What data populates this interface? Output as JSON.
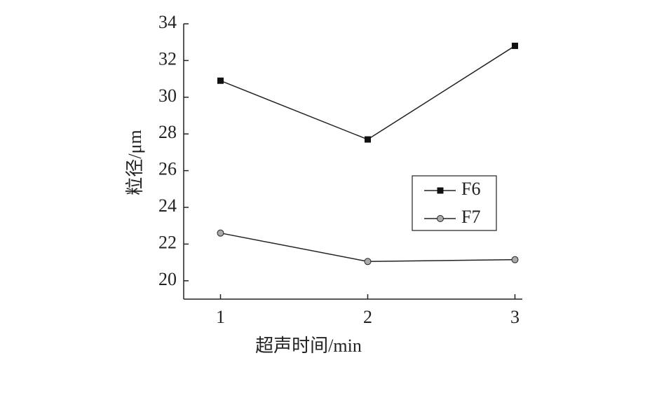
{
  "chart_data": {
    "type": "line",
    "xlabel": "超声时间/min",
    "ylabel": "粒径/μm",
    "x": [
      1,
      2,
      3
    ],
    "series": [
      {
        "name": "F6",
        "color": "#111111",
        "marker": "square",
        "values": [
          30.9,
          27.7,
          32.8
        ]
      },
      {
        "name": "F7",
        "color": "#aaaaaa",
        "marker": "circle",
        "values": [
          22.6,
          21.05,
          21.15
        ]
      }
    ],
    "xlim": [
      0.75,
      3.05
    ],
    "ylim": [
      19,
      34
    ],
    "xticks": [
      1,
      2,
      3
    ],
    "yticks": [
      20,
      22,
      24,
      26,
      28,
      30,
      32,
      34
    ],
    "legend": "center right"
  }
}
